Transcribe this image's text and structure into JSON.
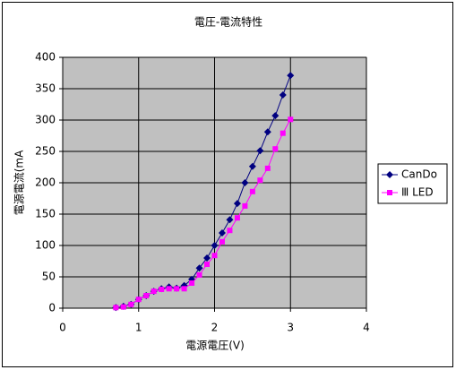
{
  "chart_data": {
    "type": "line",
    "title": "電圧-電流特性",
    "x_label": "電源電圧(V)",
    "y_label": "電源電流(mA",
    "x": [
      0.7,
      0.8,
      0.9,
      1.0,
      1.1,
      1.2,
      1.3,
      1.4,
      1.5,
      1.6,
      1.7,
      1.8,
      1.9,
      2.0,
      2.1,
      2.2,
      2.3,
      2.4,
      2.5,
      2.6,
      2.7,
      2.8,
      2.9,
      3.0
    ],
    "series": [
      {
        "name": "CanDo",
        "color": "#000080",
        "marker": "diamond",
        "values": [
          1,
          3,
          6,
          14,
          20,
          27,
          31,
          34,
          32,
          36,
          46,
          64,
          80,
          100,
          120,
          141,
          167,
          200,
          226,
          251,
          281,
          307,
          340,
          371
        ]
      },
      {
        "name": "Ⅲ LED",
        "color": "#ff00ff",
        "marker": "square",
        "values": [
          1,
          2,
          6,
          14,
          20,
          27,
          30,
          31,
          31,
          31,
          40,
          53,
          70,
          84,
          106,
          124,
          144,
          163,
          186,
          204,
          223,
          254,
          279,
          301
        ]
      }
    ],
    "xlim": [
      0,
      4
    ],
    "xticks": [
      0,
      1,
      2,
      3,
      4
    ],
    "ylim": [
      0,
      400
    ],
    "yticks": [
      0,
      50,
      100,
      150,
      200,
      250,
      300,
      350,
      400
    ],
    "grid": true,
    "plot_background": "#c0c0c0",
    "legend": "right"
  }
}
